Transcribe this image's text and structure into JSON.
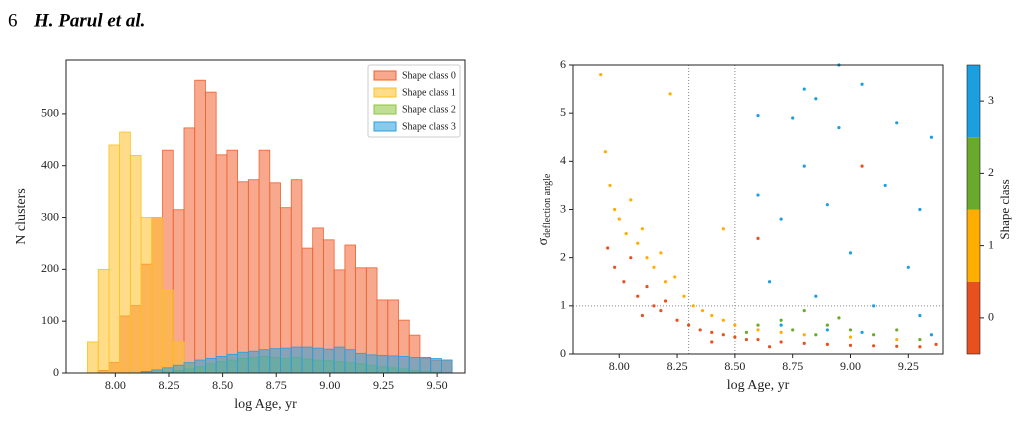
{
  "header": {
    "page_number": "6",
    "authors": "H. Parul et al."
  },
  "chart_data": [
    {
      "type": "histogram",
      "xlabel": "log Age, yr",
      "ylabel": "N clusters",
      "bins": [
        7.87,
        7.92,
        7.97,
        8.02,
        8.07,
        8.12,
        8.17,
        8.22,
        8.27,
        8.32,
        8.37,
        8.42,
        8.47,
        8.52,
        8.57,
        8.62,
        8.67,
        8.72,
        8.77,
        8.82,
        8.87,
        8.92,
        8.97,
        9.02,
        9.07,
        9.12,
        9.17,
        9.22,
        9.27,
        9.32,
        9.37,
        9.42,
        9.47,
        9.52,
        9.57
      ],
      "series": [
        {
          "name": "Shape class 0",
          "color": "#f0612f",
          "values": [
            0,
            5,
            20,
            110,
            130,
            210,
            300,
            430,
            315,
            473,
            565,
            542,
            421,
            430,
            369,
            373,
            430,
            367,
            319,
            373,
            241,
            280,
            257,
            199,
            247,
            203,
            203,
            141,
            141,
            102,
            73,
            29,
            25,
            25
          ]
        },
        {
          "name": "Shape class 1",
          "color": "#ffbf26",
          "values": [
            60,
            200,
            440,
            465,
            420,
            300,
            300,
            160,
            60,
            20,
            10,
            5,
            3,
            2,
            1,
            1,
            0,
            0,
            0,
            0,
            0,
            0,
            0,
            0,
            0,
            0,
            0,
            0,
            0,
            0,
            0,
            0,
            0,
            0
          ]
        },
        {
          "name": "Shape class 2",
          "color": "#8cc43c",
          "values": [
            0,
            0,
            0,
            0,
            0,
            0,
            0,
            2,
            5,
            8,
            12,
            18,
            22,
            25,
            28,
            30,
            32,
            30,
            28,
            30,
            27,
            25,
            24,
            22,
            20,
            18,
            15,
            12,
            10,
            8,
            5,
            3,
            2,
            0
          ]
        },
        {
          "name": "Shape class 3",
          "color": "#2a9fdc",
          "values": [
            0,
            0,
            0,
            0,
            0,
            3,
            6,
            10,
            15,
            20,
            25,
            28,
            32,
            36,
            40,
            42,
            45,
            47,
            48,
            50,
            50,
            48,
            46,
            50,
            45,
            38,
            35,
            34,
            33,
            32,
            30,
            30,
            28,
            25
          ]
        }
      ],
      "xlim": [
        7.77,
        9.63
      ],
      "ylim": [
        0,
        604
      ],
      "xticks": [
        {
          "value": 8,
          "label": "8.00"
        },
        {
          "value": 8.25,
          "label": "8.25"
        },
        {
          "value": 8.5,
          "label": "8.50"
        },
        {
          "value": 8.75,
          "label": "8.75"
        },
        {
          "value": 9,
          "label": "9.00"
        },
        {
          "value": 9.25,
          "label": "9.25"
        },
        {
          "value": 9.5,
          "label": "9.50"
        }
      ],
      "yticks": [
        0,
        100,
        200,
        300,
        400,
        500
      ],
      "legend": "upper right"
    },
    {
      "type": "scatter",
      "xlabel": "log Age, yr",
      "ylabel": "σ",
      "ylabel_subscript": "deflection angle",
      "series": [
        {
          "color": "#e8501e",
          "x": [
            7.95,
            7.98,
            8.02,
            8.05,
            8.08,
            8.12,
            8.15,
            8.18,
            8.2,
            8.25,
            8.3,
            8.35,
            8.4,
            8.45,
            8.5,
            8.55,
            8.6,
            8.7,
            8.8,
            8.9,
            9.0,
            9.1,
            9.2,
            9.3,
            9.37,
            8.1,
            8.4,
            8.65,
            9.05,
            8.6
          ],
          "values": [
            2.2,
            1.8,
            1.5,
            2.0,
            1.2,
            1.4,
            1.0,
            0.9,
            1.1,
            0.7,
            0.6,
            0.5,
            0.45,
            0.4,
            0.35,
            0.3,
            0.3,
            0.25,
            0.22,
            0.2,
            0.18,
            0.17,
            0.16,
            0.15,
            0.2,
            0.8,
            0.25,
            0.15,
            3.9,
            2.4
          ]
        },
        {
          "color": "#ffad00",
          "x": [
            7.92,
            7.94,
            7.96,
            7.98,
            8.0,
            8.03,
            8.05,
            8.08,
            8.1,
            8.12,
            8.15,
            8.18,
            8.2,
            8.24,
            8.28,
            8.32,
            8.36,
            8.4,
            8.45,
            8.5,
            8.6,
            8.7,
            8.8,
            9.0,
            9.2,
            8.22,
            8.45
          ],
          "values": [
            5.8,
            4.2,
            3.5,
            3.0,
            2.8,
            2.5,
            3.2,
            2.3,
            2.6,
            2.0,
            1.8,
            2.1,
            1.5,
            1.6,
            1.2,
            1.0,
            0.9,
            0.8,
            0.7,
            0.6,
            0.5,
            0.45,
            0.4,
            0.35,
            0.3,
            5.4,
            2.6
          ]
        },
        {
          "color": "#6aaa2a",
          "x": [
            8.6,
            8.7,
            8.75,
            8.8,
            8.85,
            8.9,
            9.0,
            9.1,
            9.2,
            9.3,
            8.55,
            8.95
          ],
          "values": [
            0.6,
            0.7,
            0.5,
            0.9,
            0.4,
            0.6,
            0.5,
            0.4,
            0.5,
            0.3,
            0.45,
            0.75
          ]
        },
        {
          "color": "#1a9fe0",
          "x": [
            8.7,
            8.8,
            8.85,
            8.95,
            9.05,
            8.95,
            9.2,
            9.35,
            8.75,
            8.6,
            8.8,
            9.15,
            9.3,
            8.9,
            9.0,
            9.25,
            8.65,
            8.85,
            9.1,
            9.3,
            8.7,
            8.9,
            9.05,
            9.35,
            8.6
          ],
          "values": [
            2.8,
            5.5,
            5.3,
            6.0,
            5.6,
            4.7,
            4.8,
            4.5,
            4.9,
            4.95,
            3.9,
            3.5,
            3.0,
            3.1,
            2.1,
            1.8,
            1.5,
            1.2,
            1.0,
            0.8,
            0.6,
            0.5,
            0.45,
            0.4,
            3.3
          ]
        }
      ],
      "xlim": [
        7.8,
        9.4
      ],
      "ylim": [
        0,
        6
      ],
      "xticks": [
        {
          "value": 8,
          "label": "8.00"
        },
        {
          "value": 8.25,
          "label": "8.25"
        },
        {
          "value": 8.5,
          "label": "8.50"
        },
        {
          "value": 8.75,
          "label": "8.75"
        },
        {
          "value": 9,
          "label": "9.00"
        },
        {
          "value": 9.25,
          "label": "9.25"
        }
      ],
      "yticks": [
        0,
        1,
        2,
        3,
        4,
        5,
        6
      ],
      "vlines": [
        8.3,
        8.5
      ],
      "hlines": [
        1
      ],
      "colorbar": {
        "label": "Shape class",
        "ticks": [
          0,
          1,
          2,
          3
        ],
        "lim": [
          -0.5,
          3.5
        ]
      }
    }
  ]
}
